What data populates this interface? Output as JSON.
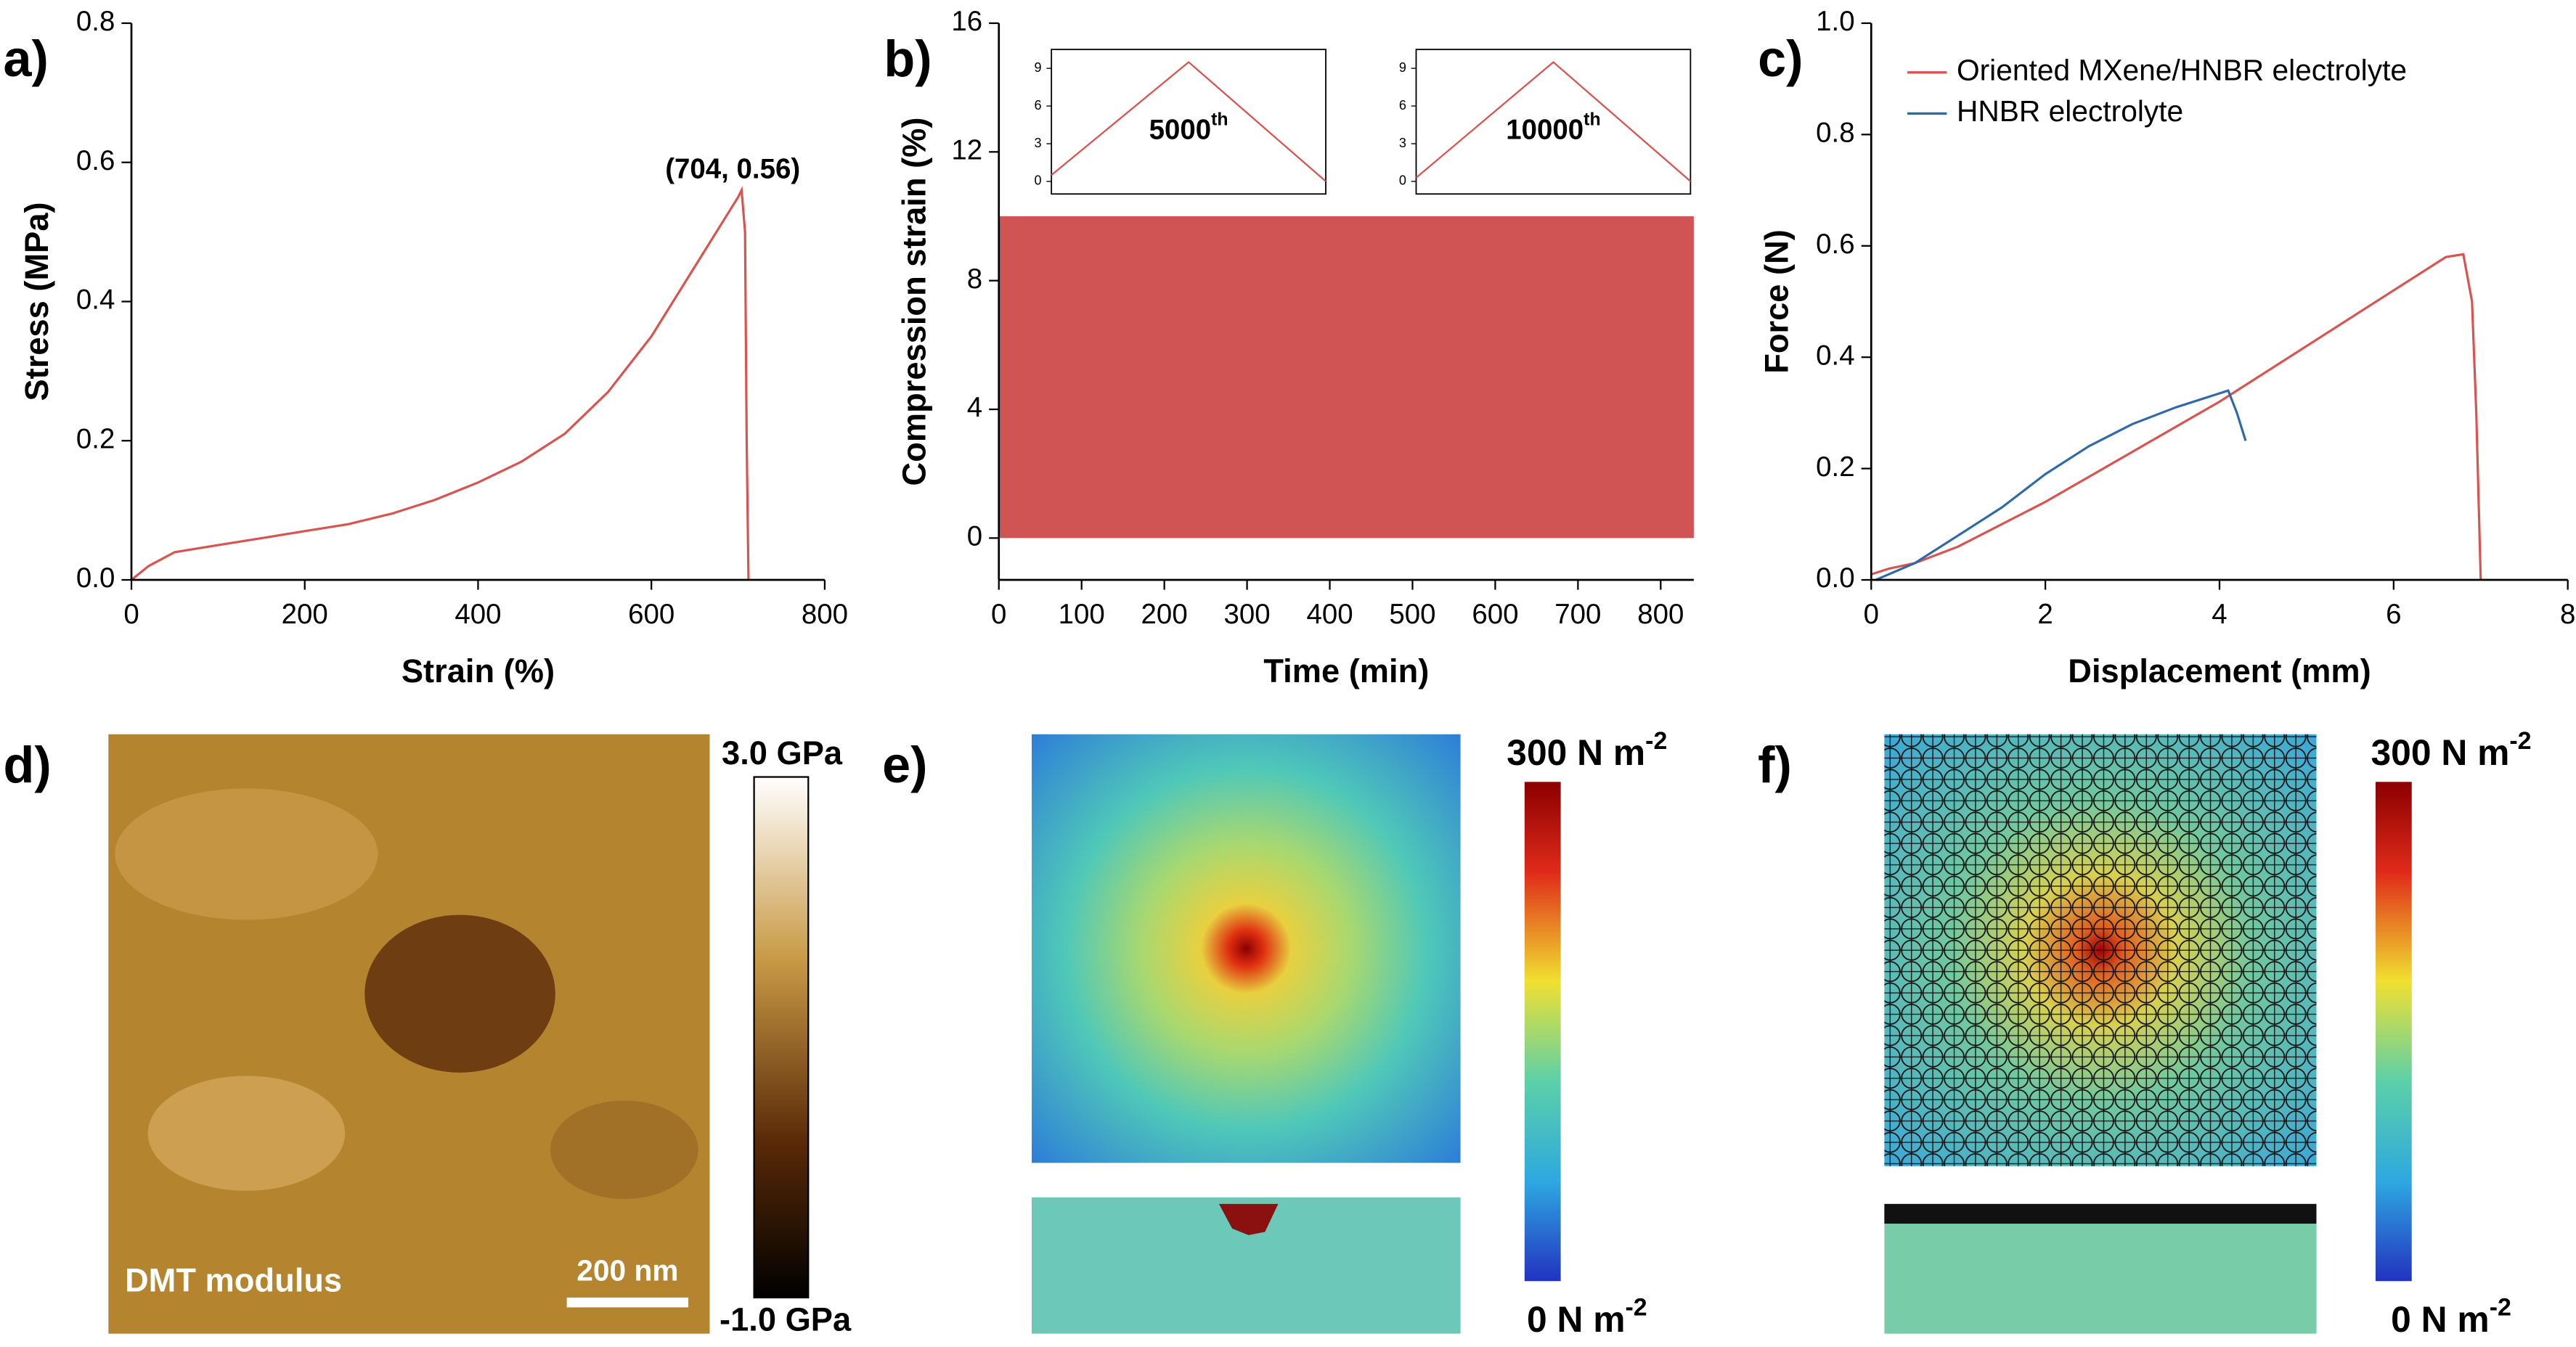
{
  "chart_data": [
    {
      "type": "line",
      "panel_label": "a)",
      "x_label": "Strain (%)",
      "y_label": "Stress (MPa)",
      "annotation": "(704, 0.56)",
      "xlim": [
        0,
        800
      ],
      "xticks": [
        0,
        200,
        400,
        600,
        800
      ],
      "ylim": [
        0,
        0.8
      ],
      "yticks": [
        {
          "value": 0,
          "label": "0.0"
        },
        0.2,
        0.4,
        0.6,
        0.8
      ],
      "series": [
        {
          "color": "#d9534f",
          "x": [
            0,
            20,
            50,
            100,
            150,
            200,
            250,
            300,
            350,
            400,
            450,
            500,
            550,
            600,
            650,
            680,
            700,
            704,
            708,
            710,
            712
          ],
          "values": [
            0,
            0.02,
            0.04,
            0.05,
            0.06,
            0.07,
            0.08,
            0.095,
            0.115,
            0.14,
            0.17,
            0.21,
            0.27,
            0.35,
            0.45,
            0.51,
            0.55,
            0.56,
            0.5,
            0.2,
            0
          ]
        }
      ]
    },
    {
      "type": "area",
      "panel_label": "b)",
      "x_label": "Time (min)",
      "y_label": "Compression strain (%)",
      "xlim": [
        0,
        840
      ],
      "xticks": [
        0,
        100,
        200,
        300,
        400,
        500,
        600,
        700,
        800
      ],
      "ylim": [
        -1.3,
        16
      ],
      "yticks": [
        0,
        4,
        8,
        12,
        16
      ],
      "series": [
        {
          "color": "#d05454",
          "x": [
            0,
            840
          ],
          "values": [
            10,
            10
          ]
        }
      ],
      "insets": [
        {
          "label": "5000",
          "sup": "th",
          "color": "#d9534f",
          "ylim": [
            -1,
            10.5
          ],
          "yticks": [
            0,
            3,
            6,
            9
          ],
          "values": [
            0.5,
            9.5,
            0
          ]
        },
        {
          "label": "10000",
          "sup": "th",
          "color": "#d9534f",
          "ylim": [
            -1,
            10.5
          ],
          "yticks": [
            0,
            3,
            6,
            9
          ],
          "values": [
            0.3,
            9.5,
            0
          ]
        }
      ]
    },
    {
      "type": "line",
      "panel_label": "c)",
      "x_label": "Displacement (mm)",
      "y_label": "Force (N)",
      "xlim": [
        0,
        8
      ],
      "xticks": [
        0,
        2,
        4,
        6,
        8
      ],
      "ylim": [
        0,
        1.0
      ],
      "yticks": [
        {
          "value": 0,
          "label": "0.0"
        },
        0.2,
        0.4,
        0.6,
        0.8,
        {
          "value": 1.0,
          "label": "1.0"
        }
      ],
      "legend": "upper left",
      "series": [
        {
          "name": "Oriented MXene/HNBR electrolyte",
          "color": "#d9534f",
          "x": [
            0,
            0.2,
            0.5,
            1,
            2,
            3,
            4,
            5,
            6,
            6.6,
            6.8,
            6.9,
            6.95,
            7.0
          ],
          "values": [
            0.01,
            0.02,
            0.03,
            0.06,
            0.14,
            0.23,
            0.32,
            0.42,
            0.52,
            0.58,
            0.585,
            0.5,
            0.3,
            0
          ]
        },
        {
          "name": "HNBR electrolyte",
          "color": "#2f6aa8",
          "x": [
            0.05,
            0.5,
            1,
            1.5,
            2,
            2.5,
            3,
            3.5,
            4,
            4.1,
            4.2,
            4.3
          ],
          "values": [
            0,
            0.03,
            0.08,
            0.13,
            0.19,
            0.24,
            0.28,
            0.31,
            0.335,
            0.34,
            0.3,
            0.25
          ]
        }
      ]
    }
  ],
  "images": [
    {
      "panel_label": "d)",
      "caption": "DMT modulus",
      "scale_bar": "200 nm",
      "top_label": "3.0 GPa",
      "bottom_label": "-1.0 GPa"
    },
    {
      "panel_label": "e)",
      "top_label": {
        "text": "300 N m",
        "sup": "-2"
      },
      "bottom_label": {
        "text": "0 N m",
        "sup": "-2"
      }
    },
    {
      "panel_label": "f)",
      "top_label": {
        "text": "300 N m",
        "sup": "-2"
      },
      "bottom_label": {
        "text": "0 N m",
        "sup": "-2"
      }
    }
  ]
}
